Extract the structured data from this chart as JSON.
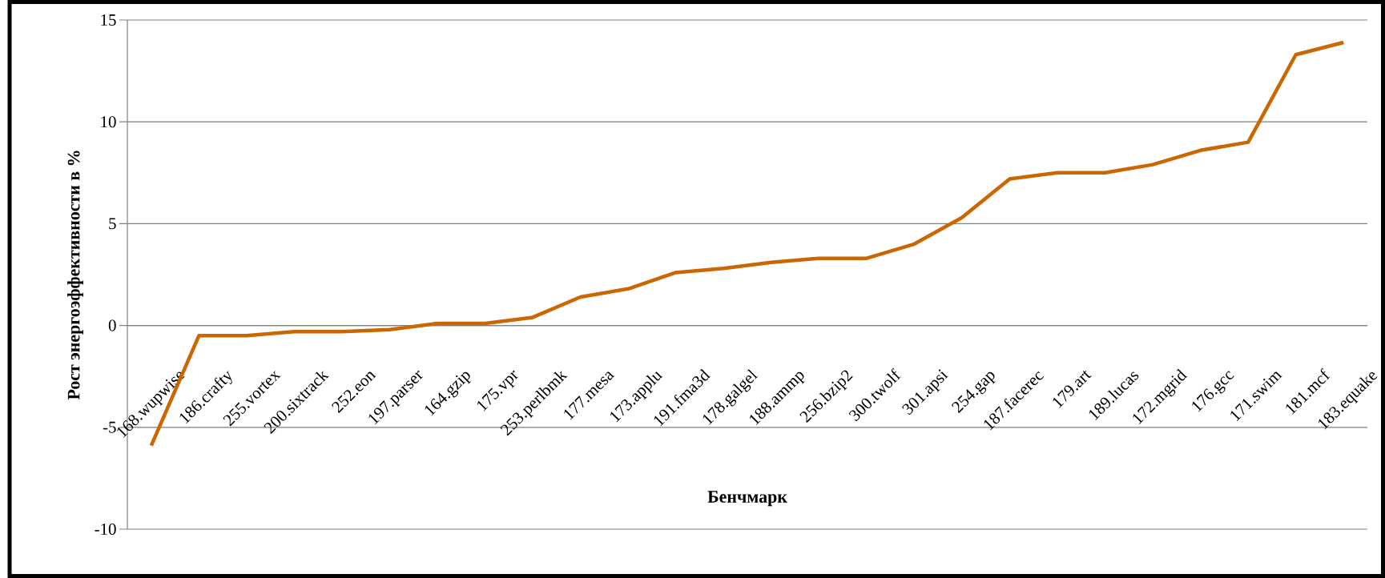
{
  "chart_data": {
    "type": "line",
    "xlabel": "Бенчмарк",
    "ylabel": "Рост энергоэффективности в %",
    "categories": [
      "168.wupwise",
      "186.crafty",
      "255.vortex",
      "200.sixtrack",
      "252.eon",
      "197.parser",
      "164.gzip",
      "175.vpr",
      "253.perlbmk",
      "177.mesa",
      "173.applu",
      "191.fma3d",
      "178.galgel",
      "188.ammp",
      "256.bzip2",
      "300.twolf",
      "301.apsi",
      "254.gap",
      "187.facerec",
      "179.art",
      "189.lucas",
      "172.mgrid",
      "176.gcc",
      "171.swim",
      "181.mcf",
      "183.equake"
    ],
    "values": [
      -5.9,
      -0.5,
      -0.5,
      -0.3,
      -0.3,
      -0.2,
      0.1,
      0.1,
      0.4,
      1.4,
      1.8,
      2.6,
      2.8,
      3.1,
      3.3,
      3.3,
      4.0,
      5.3,
      7.2,
      7.5,
      7.5,
      7.9,
      8.6,
      9.0,
      13.3,
      13.9
    ],
    "color": "#cc6600",
    "ylim": [
      -10,
      15
    ],
    "yticks": [
      -10,
      -5,
      0,
      5,
      10,
      15
    ],
    "grid": "y",
    "marker": "none",
    "line_style": "solid"
  }
}
